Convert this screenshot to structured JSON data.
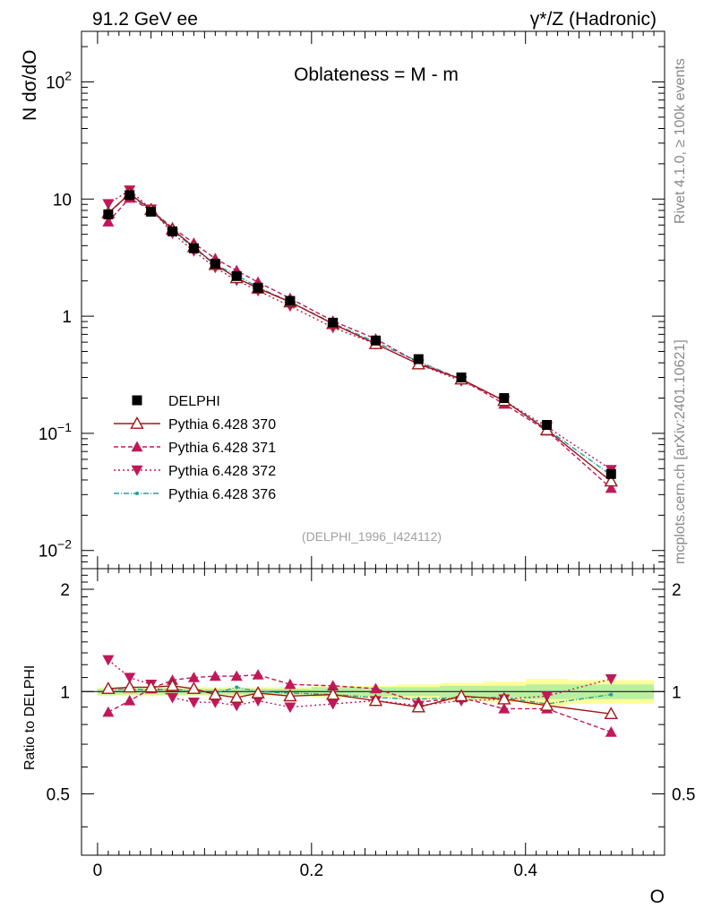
{
  "header": {
    "left": "91.2 GeV ee",
    "right": "γ*/Z (Hadronic)"
  },
  "side_labels": {
    "rivet": "Rivet 4.1.0, ≥ 100k events",
    "mcplots": "mcplots.cern.ch [arXiv:2401.10621]"
  },
  "watermark": "(DELPHI_1996_I424112)",
  "chart_data": {
    "type": "line",
    "title": "Oblateness = M - m",
    "xlabel": "O",
    "ylabel": "N  dσ/dO",
    "ratio_ylabel": "Ratio to DELPHI",
    "xlim": [
      -0.015,
      0.53
    ],
    "ylim": [
      0.007,
      270
    ],
    "ratio_ylim": [
      0.33,
      2.3
    ],
    "x_ticks": [
      {
        "v": 0,
        "label": "0"
      },
      {
        "v": 0.2,
        "label": "0.2"
      },
      {
        "v": 0.4,
        "label": "0.4"
      }
    ],
    "y_ticks": [
      {
        "v": 0.01,
        "base": "10",
        "exp": "−2"
      },
      {
        "v": 0.1,
        "base": "10",
        "exp": "−1"
      },
      {
        "v": 1,
        "base": "1",
        "exp": ""
      },
      {
        "v": 10,
        "base": "10",
        "exp": ""
      },
      {
        "v": 100,
        "base": "10",
        "exp": "2"
      }
    ],
    "ratio_ticks": [
      {
        "v": 0.5,
        "label": "0.5"
      },
      {
        "v": 1,
        "label": "1"
      },
      {
        "v": 2,
        "label": "2"
      }
    ],
    "x": [
      0.01,
      0.03,
      0.05,
      0.07,
      0.09,
      0.11,
      0.13,
      0.15,
      0.18,
      0.22,
      0.26,
      0.3,
      0.34,
      0.38,
      0.42,
      0.48
    ],
    "bin_edges": [
      0.0,
      0.02,
      0.04,
      0.06,
      0.08,
      0.1,
      0.12,
      0.14,
      0.16,
      0.2,
      0.24,
      0.28,
      0.32,
      0.36,
      0.4,
      0.44,
      0.52
    ],
    "data": {
      "name": "DELPHI",
      "values": [
        7.4,
        10.8,
        7.8,
        5.3,
        3.8,
        2.8,
        2.2,
        1.75,
        1.35,
        0.88,
        0.62,
        0.43,
        0.3,
        0.2,
        0.118,
        0.045
      ],
      "band_inner": [
        0.02,
        0.02,
        0.02,
        0.02,
        0.02,
        0.02,
        0.02,
        0.02,
        0.02,
        0.03,
        0.03,
        0.03,
        0.04,
        0.04,
        0.05,
        0.05
      ],
      "band_outer": [
        0.03,
        0.03,
        0.03,
        0.03,
        0.03,
        0.03,
        0.03,
        0.03,
        0.03,
        0.04,
        0.04,
        0.05,
        0.06,
        0.07,
        0.09,
        0.08
      ]
    },
    "series": [
      {
        "name": "Pythia 6.428 370",
        "color": "#a01818",
        "dash": "",
        "marker": "open-triangle-up",
        "values": [
          7.6,
          11.1,
          8.1,
          5.5,
          3.9,
          2.75,
          2.12,
          1.73,
          1.32,
          0.86,
          0.58,
          0.39,
          0.29,
          0.19,
          0.107,
          0.039
        ],
        "ratio": [
          1.02,
          1.03,
          1.03,
          1.04,
          1.02,
          0.98,
          0.96,
          0.99,
          0.97,
          0.98,
          0.94,
          0.9,
          0.97,
          0.95,
          0.91,
          0.86
        ]
      },
      {
        "name": "Pythia 6.428 371",
        "color": "#c0185a",
        "dash": "5,3",
        "marker": "filled-triangle-up",
        "values": [
          6.4,
          10.2,
          8.0,
          5.7,
          4.2,
          3.1,
          2.45,
          1.95,
          1.42,
          0.91,
          0.64,
          0.4,
          0.29,
          0.178,
          0.105,
          0.034
        ],
        "ratio": [
          0.87,
          0.94,
          1.02,
          1.08,
          1.1,
          1.11,
          1.11,
          1.12,
          1.05,
          1.04,
          1.02,
          0.93,
          0.96,
          0.89,
          0.89,
          0.76
        ]
      },
      {
        "name": "Pythia 6.428 372",
        "color": "#c0185a",
        "dash": "2,3",
        "marker": "filled-triangle-down",
        "values": [
          9.1,
          11.9,
          8.2,
          5.1,
          3.6,
          2.6,
          2.02,
          1.65,
          1.22,
          0.8,
          0.58,
          0.39,
          0.28,
          0.19,
          0.114,
          0.049
        ],
        "ratio": [
          1.24,
          1.1,
          1.05,
          0.96,
          0.93,
          0.93,
          0.91,
          0.94,
          0.9,
          0.92,
          0.94,
          0.91,
          0.94,
          0.95,
          0.97,
          1.09
        ]
      },
      {
        "name": "Pythia 6.428 376",
        "color": "#20a0a0",
        "dash": "6,2,1,2",
        "marker": "dot",
        "values": [
          7.5,
          11.0,
          7.9,
          5.4,
          3.8,
          2.75,
          2.25,
          1.76,
          1.33,
          0.87,
          0.6,
          0.41,
          0.29,
          0.19,
          0.109,
          0.044
        ],
        "ratio": [
          1.01,
          1.02,
          1.01,
          1.02,
          1.0,
          0.99,
          1.03,
          1.0,
          0.99,
          0.98,
          0.96,
          0.95,
          0.96,
          0.96,
          0.92,
          0.98
        ]
      }
    ]
  }
}
